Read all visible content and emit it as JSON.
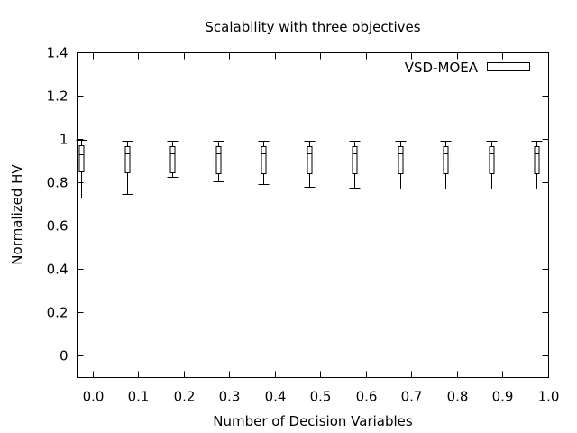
{
  "chart_data": {
    "type": "boxplot",
    "title": "Scalability with three objectives",
    "xlabel": "Number of Decision Variables",
    "ylabel": "Normalized HV",
    "xlim": [
      -0.035,
      1.0
    ],
    "ylim": [
      -0.1,
      1.4
    ],
    "x_ticks": [
      {
        "value": 0.0,
        "label": "0.0"
      },
      {
        "value": 0.1,
        "label": "0.1"
      },
      {
        "value": 0.2,
        "label": "0.2"
      },
      {
        "value": 0.3,
        "label": "0.3"
      },
      {
        "value": 0.4,
        "label": "0.4"
      },
      {
        "value": 0.5,
        "label": "0.5"
      },
      {
        "value": 0.6,
        "label": "0.6"
      },
      {
        "value": 0.7,
        "label": "0.7"
      },
      {
        "value": 0.8,
        "label": "0.8"
      },
      {
        "value": 0.9,
        "label": "0.9"
      },
      {
        "value": 1.0,
        "label": "1.0"
      }
    ],
    "y_ticks": [
      {
        "value": 0.0,
        "label": "0"
      },
      {
        "value": 0.2,
        "label": "0.2"
      },
      {
        "value": 0.4,
        "label": "0.4"
      },
      {
        "value": 0.6,
        "label": "0.6"
      },
      {
        "value": 0.8,
        "label": "0.8"
      },
      {
        "value": 1.0,
        "label": "1"
      },
      {
        "value": 1.2,
        "label": "1.2"
      },
      {
        "value": 1.4,
        "label": "1.4"
      }
    ],
    "legend": {
      "position": "top-right",
      "entries": [
        "VSD-MOEA"
      ]
    },
    "grid": false,
    "series": [
      {
        "name": "VSD-MOEA",
        "boxes": [
          {
            "x": -0.025,
            "min": 0.73,
            "q1": 0.85,
            "median": 0.93,
            "q3": 0.97,
            "max": 0.995
          },
          {
            "x": 0.075,
            "min": 0.745,
            "q1": 0.845,
            "median": 0.935,
            "q3": 0.965,
            "max": 0.99
          },
          {
            "x": 0.175,
            "min": 0.825,
            "q1": 0.845,
            "median": 0.935,
            "q3": 0.965,
            "max": 0.99
          },
          {
            "x": 0.275,
            "min": 0.805,
            "q1": 0.84,
            "median": 0.935,
            "q3": 0.965,
            "max": 0.99
          },
          {
            "x": 0.375,
            "min": 0.79,
            "q1": 0.84,
            "median": 0.935,
            "q3": 0.965,
            "max": 0.99
          },
          {
            "x": 0.475,
            "min": 0.78,
            "q1": 0.84,
            "median": 0.935,
            "q3": 0.965,
            "max": 0.99
          },
          {
            "x": 0.575,
            "min": 0.775,
            "q1": 0.84,
            "median": 0.935,
            "q3": 0.965,
            "max": 0.99
          },
          {
            "x": 0.675,
            "min": 0.77,
            "q1": 0.84,
            "median": 0.935,
            "q3": 0.965,
            "max": 0.99
          },
          {
            "x": 0.775,
            "min": 0.77,
            "q1": 0.84,
            "median": 0.935,
            "q3": 0.965,
            "max": 0.99
          },
          {
            "x": 0.875,
            "min": 0.77,
            "q1": 0.84,
            "median": 0.935,
            "q3": 0.965,
            "max": 0.99
          },
          {
            "x": 0.975,
            "min": 0.77,
            "q1": 0.84,
            "median": 0.935,
            "q3": 0.965,
            "max": 0.99
          }
        ]
      }
    ]
  }
}
